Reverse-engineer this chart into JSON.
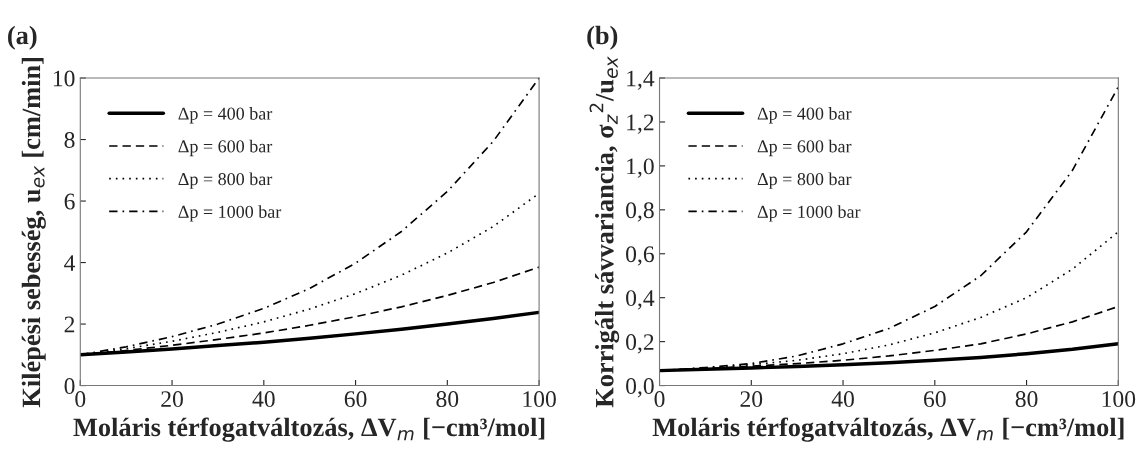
{
  "chart_data": [
    {
      "type": "line",
      "title": "(a)",
      "xlabel": "Moláris térfogatváltozás, ΔV$_{m}$ [−cm³/mol]",
      "ylabel": "Kilépési sebesség, u$_{ex}$ [cm/min]",
      "x": [
        0,
        10,
        20,
        30,
        40,
        50,
        60,
        70,
        80,
        90,
        100
      ],
      "xlim": [
        0,
        100
      ],
      "xticks": [
        0,
        20,
        40,
        60,
        80,
        100
      ],
      "ylim": [
        0,
        10
      ],
      "yticks": [
        0,
        2,
        4,
        6,
        8,
        10
      ],
      "grid": false,
      "legend": "top left",
      "series": [
        {
          "name": "Δp = 400 bar",
          "color": "#000000",
          "line_style": "solid",
          "values": [
            1.0,
            1.09,
            1.19,
            1.3,
            1.41,
            1.54,
            1.68,
            1.83,
            2.0,
            2.18,
            2.38
          ]
        },
        {
          "name": "Δp = 600 bar",
          "color": "#000000",
          "line_style": "dashed",
          "values": [
            1.0,
            1.14,
            1.31,
            1.5,
            1.71,
            1.96,
            2.24,
            2.56,
            2.93,
            3.35,
            3.85
          ]
        },
        {
          "name": "Δp = 800 bar",
          "color": "#000000",
          "line_style": "dotted",
          "values": [
            1.0,
            1.2,
            1.44,
            1.73,
            2.07,
            2.49,
            2.99,
            3.59,
            4.31,
            5.17,
            6.25
          ]
        },
        {
          "name": "Δp = 1000 bar",
          "color": "#000000",
          "line_style": "dashdot",
          "values": [
            1.0,
            1.26,
            1.59,
            2.0,
            2.51,
            3.16,
            3.98,
            5.01,
            6.31,
            7.94,
            10.0
          ]
        }
      ]
    },
    {
      "type": "line",
      "title": "(b)",
      "xlabel": "Moláris térfogatváltozás, ΔV$_{m}$ [−cm³/mol]",
      "ylabel": "Korrigált sávvariancia, σ$_{z}$$^{2}$/u$_{ex}$",
      "x": [
        0,
        10,
        20,
        30,
        40,
        50,
        60,
        70,
        80,
        90,
        100
      ],
      "xlim": [
        0,
        100
      ],
      "xticks": [
        0,
        20,
        40,
        60,
        80,
        100
      ],
      "ylim": [
        0,
        1.4
      ],
      "yticks": [
        {
          "value": 0,
          "label": "0,0"
        },
        {
          "value": 0.2,
          "label": "0,2"
        },
        {
          "value": 0.4,
          "label": "0,4"
        },
        {
          "value": 0.6,
          "label": "0,6"
        },
        {
          "value": 0.8,
          "label": "0,8"
        },
        {
          "value": 1.0,
          "label": "1,0"
        },
        {
          "value": 1.2,
          "label": "1,2"
        },
        {
          "value": 1.4,
          "label": "1,4"
        }
      ],
      "grid": false,
      "legend": "top left",
      "series": [
        {
          "name": "Δp = 400 bar",
          "color": "#000000",
          "line_style": "solid",
          "values": [
            0.068,
            0.074,
            0.08,
            0.087,
            0.095,
            0.104,
            0.115,
            0.128,
            0.145,
            0.165,
            0.19
          ]
        },
        {
          "name": "Δp = 600 bar",
          "color": "#000000",
          "line_style": "dashed",
          "values": [
            0.068,
            0.077,
            0.088,
            0.1,
            0.115,
            0.135,
            0.16,
            0.19,
            0.235,
            0.29,
            0.36
          ]
        },
        {
          "name": "Δp = 800 bar",
          "color": "#000000",
          "line_style": "dotted",
          "values": [
            0.068,
            0.08,
            0.095,
            0.115,
            0.145,
            0.185,
            0.24,
            0.31,
            0.4,
            0.53,
            0.7
          ]
        },
        {
          "name": "Δp = 1000 bar",
          "color": "#000000",
          "line_style": "dashdot",
          "values": [
            0.068,
            0.082,
            0.1,
            0.135,
            0.19,
            0.26,
            0.36,
            0.5,
            0.7,
            0.98,
            1.36
          ]
        }
      ]
    }
  ]
}
